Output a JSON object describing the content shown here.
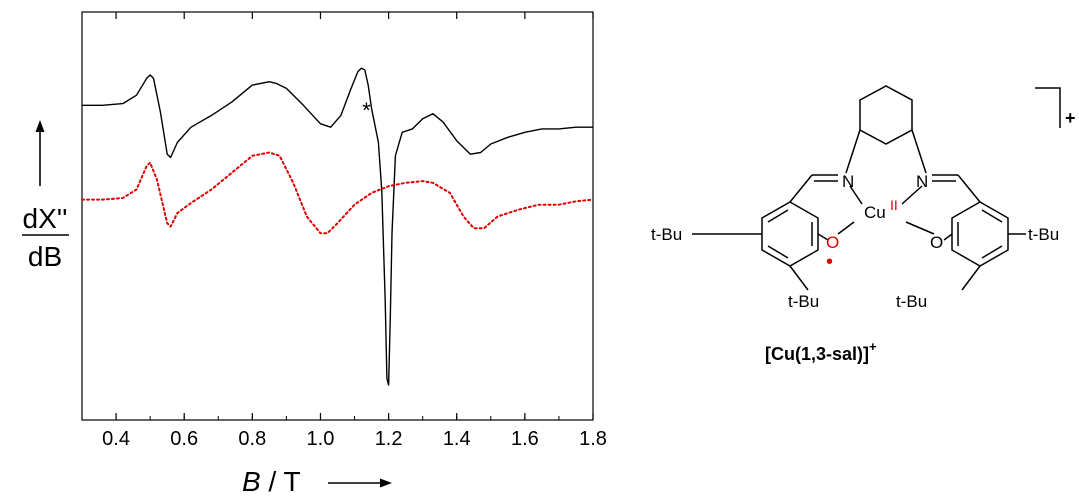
{
  "chart_data": {
    "type": "line",
    "title": "",
    "xlabel": "B / T",
    "ylabel": "dX'' / dB",
    "ylabel_parts": {
      "numerator": "dX''",
      "denominator": "dB"
    },
    "xlim": [
      0.3,
      1.8
    ],
    "ylim": [
      -1,
      1
    ],
    "x_ticks": [
      "0.4",
      "0.6",
      "0.8",
      "1.0",
      "1.2",
      "1.4",
      "1.6",
      "1.8"
    ],
    "x_tick_values": [
      0.4,
      0.6,
      0.8,
      1.0,
      1.2,
      1.4,
      1.6,
      1.8
    ],
    "grid": false,
    "legend": "none",
    "annotations": [
      {
        "text": "*",
        "x": 1.14
      }
    ],
    "series": [
      {
        "style": "solid",
        "color": "#000000",
        "x": [
          0.3,
          0.36,
          0.42,
          0.46,
          0.49,
          0.5,
          0.51,
          0.53,
          0.55,
          0.56,
          0.58,
          0.62,
          0.68,
          0.74,
          0.8,
          0.85,
          0.87,
          0.9,
          0.95,
          1.0,
          1.03,
          1.06,
          1.09,
          1.11,
          1.12,
          1.13,
          1.14,
          1.15,
          1.16,
          1.17,
          1.18,
          1.19,
          1.195,
          1.2,
          1.205,
          1.21,
          1.22,
          1.24,
          1.27,
          1.3,
          1.33,
          1.36,
          1.4,
          1.44,
          1.47,
          1.5,
          1.55,
          1.6,
          1.65,
          1.7,
          1.75,
          1.8
        ],
        "y": [
          0.66,
          0.66,
          0.67,
          0.72,
          0.82,
          0.84,
          0.82,
          0.62,
          0.37,
          0.35,
          0.44,
          0.53,
          0.6,
          0.68,
          0.78,
          0.8,
          0.79,
          0.76,
          0.66,
          0.55,
          0.53,
          0.6,
          0.76,
          0.86,
          0.88,
          0.87,
          0.78,
          0.64,
          0.54,
          0.44,
          0.15,
          -0.5,
          -0.96,
          -1.0,
          -0.6,
          -0.1,
          0.36,
          0.5,
          0.52,
          0.58,
          0.61,
          0.56,
          0.45,
          0.37,
          0.38,
          0.43,
          0.47,
          0.5,
          0.52,
          0.52,
          0.53,
          0.53
        ]
      },
      {
        "style": "dotted",
        "color": "#e00000",
        "x": [
          0.3,
          0.36,
          0.42,
          0.46,
          0.49,
          0.5,
          0.52,
          0.55,
          0.56,
          0.58,
          0.62,
          0.68,
          0.74,
          0.8,
          0.85,
          0.88,
          0.92,
          0.96,
          1.0,
          1.02,
          1.05,
          1.1,
          1.15,
          1.2,
          1.25,
          1.3,
          1.33,
          1.38,
          1.42,
          1.45,
          1.48,
          1.52,
          1.58,
          1.64,
          1.7,
          1.75,
          1.8
        ],
        "y": [
          0.1,
          0.1,
          0.11,
          0.16,
          0.3,
          0.32,
          0.22,
          -0.04,
          -0.06,
          0.02,
          0.08,
          0.16,
          0.26,
          0.36,
          0.38,
          0.36,
          0.2,
          0.0,
          -0.1,
          -0.1,
          -0.04,
          0.07,
          0.14,
          0.18,
          0.2,
          0.21,
          0.2,
          0.14,
          0.0,
          -0.07,
          -0.07,
          0.0,
          0.04,
          0.07,
          0.07,
          0.09,
          0.1
        ]
      }
    ]
  },
  "molecule": {
    "name": "[Cu(1,3-sal)]",
    "name_charge": "+",
    "complex_charge": "+",
    "atoms": {
      "N_left": "N",
      "N_right": "N",
      "O_left": "O",
      "O_right": "O",
      "Cu": "Cu",
      "Cu_oxidation": "II",
      "radical_dot": "•",
      "tBu_left": "t-Bu",
      "tBu_right": "t-Bu",
      "tBu_bottom_left": "t-Bu",
      "tBu_bottom_right": "t-Bu"
    }
  },
  "colors": {
    "sim_curve": "#e00000",
    "radical": "#e00000",
    "exp_curve": "#000000"
  }
}
